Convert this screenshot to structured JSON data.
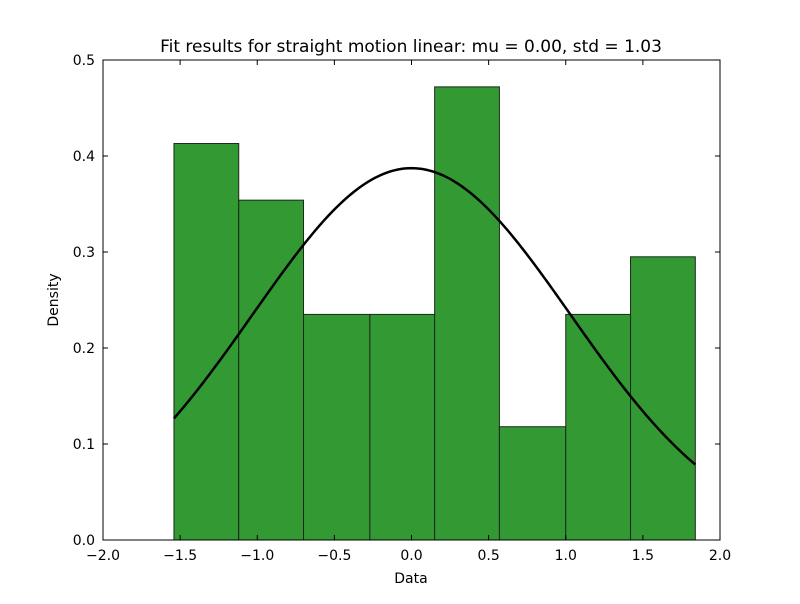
{
  "chart_data": {
    "type": "bar",
    "title": "Fit results for straight motion linear: mu = 0.00,  std = 1.03",
    "xlabel": "Data",
    "ylabel": "Density",
    "xlim": [
      -2.0,
      2.0
    ],
    "ylim": [
      0.0,
      0.5
    ],
    "xticks": [
      -2.0,
      -1.5,
      -1.0,
      -0.5,
      0.0,
      0.5,
      1.0,
      1.5,
      2.0
    ],
    "xtick_labels": [
      "−2.0",
      "−1.5",
      "−1.0",
      "−0.5",
      "0.0",
      "0.5",
      "1.0",
      "1.5",
      "2.0"
    ],
    "yticks": [
      0.0,
      0.1,
      0.2,
      0.3,
      0.4,
      0.5
    ],
    "ytick_labels": [
      "0.0",
      "0.1",
      "0.2",
      "0.3",
      "0.4",
      "0.5"
    ],
    "grid": false,
    "bins": [
      {
        "x0": -1.54,
        "x1": -1.12,
        "value": 0.413
      },
      {
        "x0": -1.12,
        "x1": -0.7,
        "value": 0.354
      },
      {
        "x0": -0.7,
        "x1": -0.27,
        "value": 0.235
      },
      {
        "x0": -0.27,
        "x1": 0.15,
        "value": 0.235
      },
      {
        "x0": 0.15,
        "x1": 0.57,
        "value": 0.472
      },
      {
        "x0": 0.57,
        "x1": 1.0,
        "value": 0.118
      },
      {
        "x0": 1.0,
        "x1": 1.42,
        "value": 0.235
      },
      {
        "x0": 1.42,
        "x1": 1.84,
        "value": 0.295
      }
    ],
    "fit_curve": {
      "type": "normal_pdf",
      "mu": 0.0,
      "std": 1.03,
      "x_range": [
        -1.54,
        1.84
      ]
    },
    "colors": {
      "bar_fill": "#339933",
      "bar_edge": "#1a2a1a",
      "curve": "#000000"
    }
  }
}
